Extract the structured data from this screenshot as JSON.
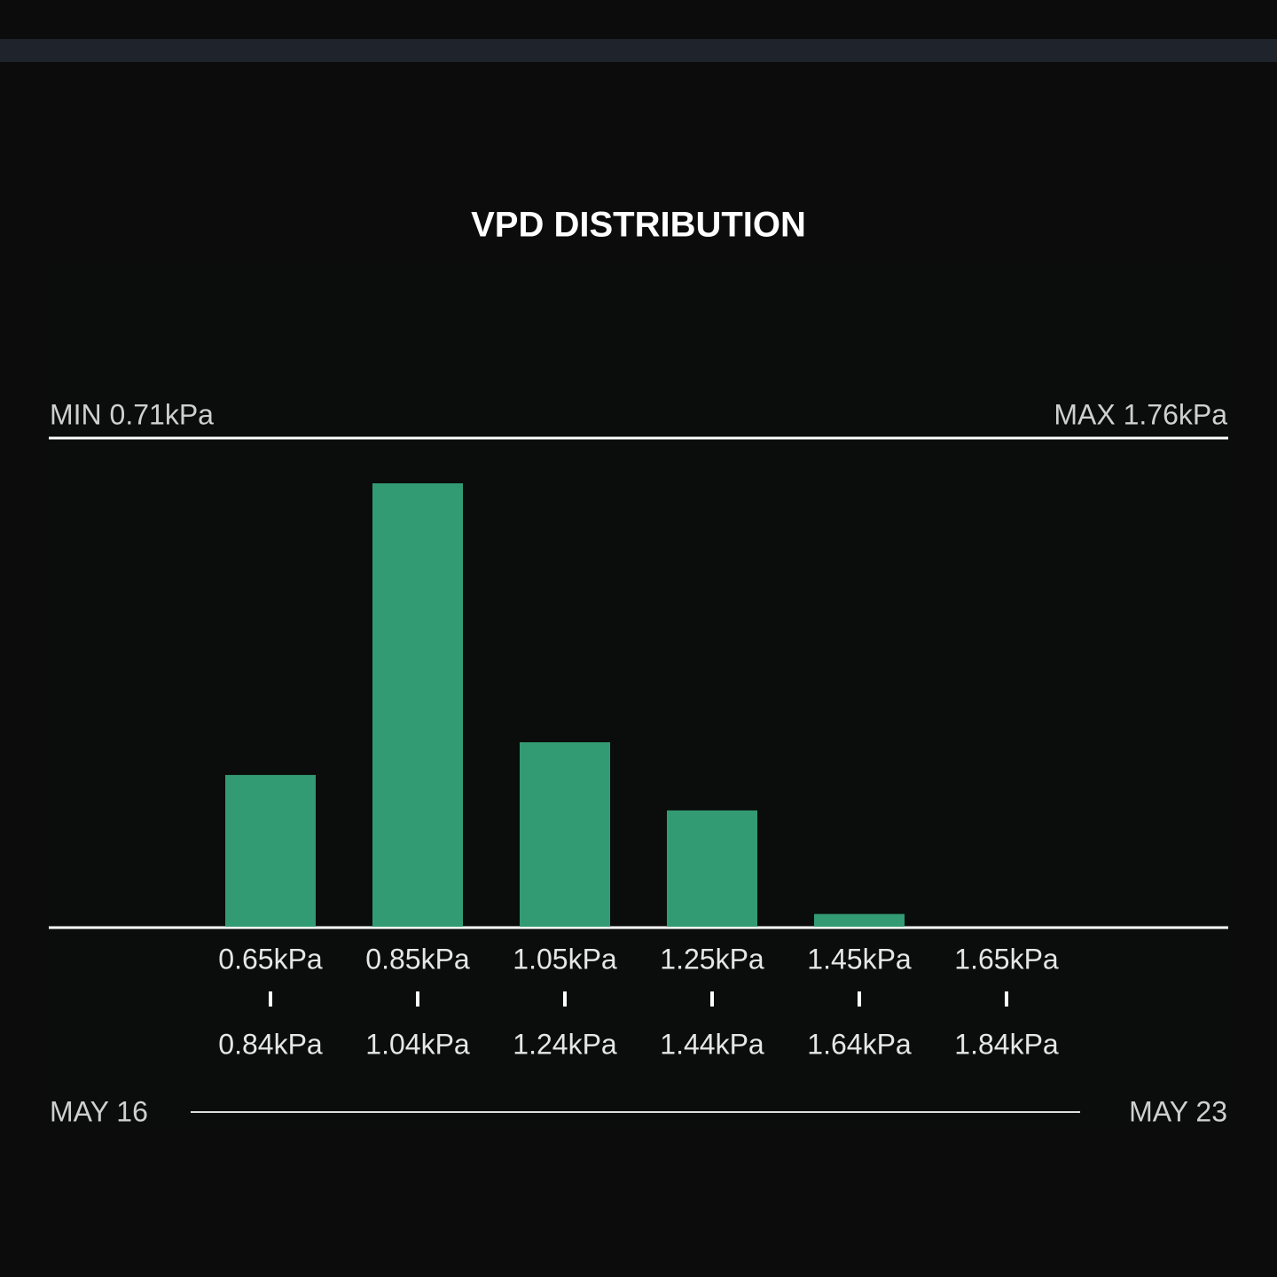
{
  "chart_data": {
    "type": "bar",
    "title": "VPD DISTRIBUTION",
    "min_label": "MIN 0.71kPa",
    "max_label": "MAX 1.76kPa",
    "categories": [
      [
        "0.65kPa",
        "0.84kPa"
      ],
      [
        "0.85kPa",
        "1.04kPa"
      ],
      [
        "1.05kPa",
        "1.24kPa"
      ],
      [
        "1.25kPa",
        "1.44kPa"
      ],
      [
        "1.45kPa",
        "1.64kPa"
      ],
      [
        "1.65kPa",
        "1.84kPa"
      ]
    ],
    "values": [
      16.7,
      48.8,
      20.3,
      12.8,
      1.4,
      0
    ],
    "color": "#339b73",
    "start_date": "MAY 16",
    "end_date": "MAY 23"
  }
}
